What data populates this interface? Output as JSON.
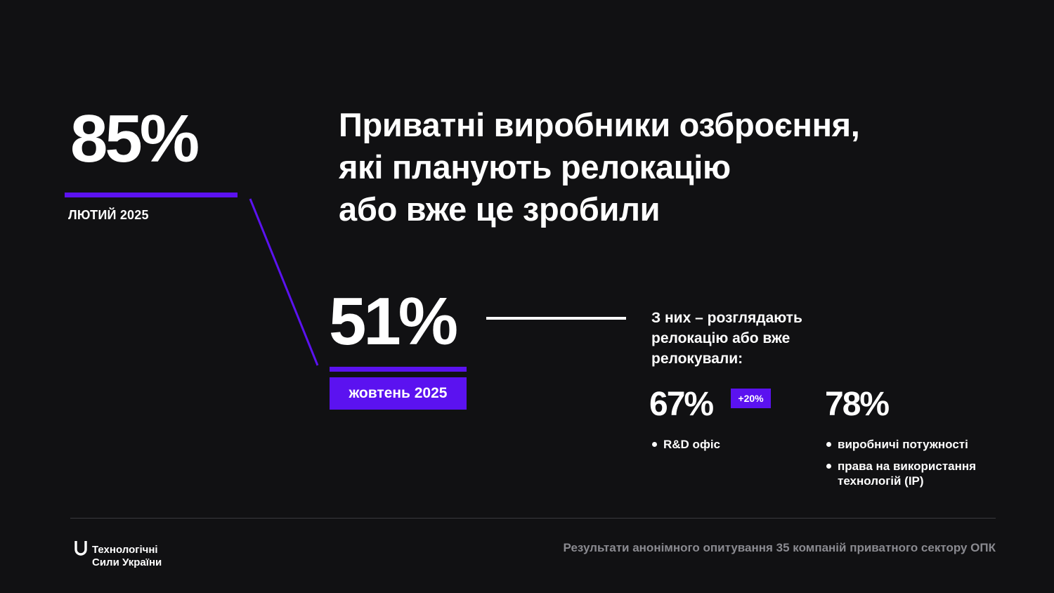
{
  "stats": {
    "february": {
      "value": "85%",
      "label": "ЛЮТИЙ 2025"
    },
    "october": {
      "value": "51%",
      "label": "жовтень 2025"
    }
  },
  "headline": "Приватні виробники озброєння,\nякі планують релокацію\nабо вже це зробили",
  "breakdown": {
    "intro": "З них – розглядають\nрелокацію або вже\nрелокували:",
    "items": [
      {
        "value": "67%",
        "badge": "+20%",
        "bullets": [
          "R&D офіс"
        ]
      },
      {
        "value": "78%",
        "bullets": [
          "виробничі потужності",
          "права на використання технологій (IP)"
        ]
      }
    ]
  },
  "footer": {
    "logo_text": "Технологічні\nСили України",
    "note": "Результати анонімного опитування 35 компаній приватного сектору ОПК"
  },
  "colors": {
    "background": "#111113",
    "accent": "#5b12f0",
    "text": "#ffffff",
    "muted": "#8a8a90"
  },
  "icons": {
    "logo": "u-logo-icon",
    "bullet": "bullet-dot-icon"
  }
}
